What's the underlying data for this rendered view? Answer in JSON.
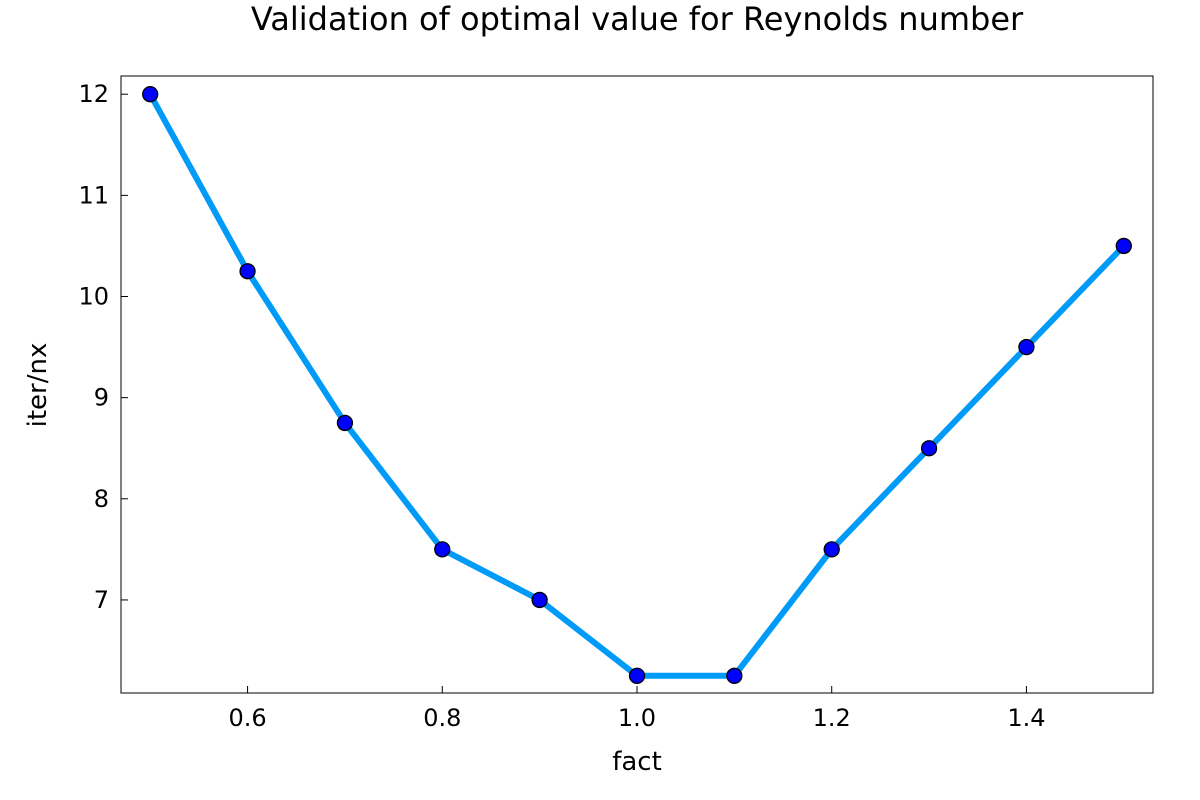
{
  "chart_data": {
    "type": "line",
    "title": "Validation of optimal value for Reynolds number",
    "xlabel": "fact",
    "ylabel": "iter/nx",
    "x": [
      0.5,
      0.6,
      0.7,
      0.8,
      0.9,
      1.0,
      1.1,
      1.2,
      1.3,
      1.4,
      1.5
    ],
    "series": [
      {
        "values": [
          12.0,
          10.25,
          8.75,
          7.5,
          7.0,
          6.25,
          6.25,
          7.5,
          8.5,
          9.5,
          10.5
        ]
      }
    ],
    "xlim": [
      0.47,
      1.53
    ],
    "ylim": [
      6.08,
      12.18
    ],
    "xticks": [
      {
        "value": 0.6,
        "label": "0.6"
      },
      {
        "value": 0.8,
        "label": "0.8"
      },
      {
        "value": 1.0,
        "label": "1.0"
      },
      {
        "value": 1.2,
        "label": "1.2"
      },
      {
        "value": 1.4,
        "label": "1.4"
      }
    ],
    "yticks": [
      {
        "value": 7,
        "label": "7"
      },
      {
        "value": 8,
        "label": "8"
      },
      {
        "value": 9,
        "label": "9"
      },
      {
        "value": 10,
        "label": "10"
      },
      {
        "value": 11,
        "label": "11"
      },
      {
        "value": 12,
        "label": "12"
      }
    ],
    "grid": false,
    "legend": "none",
    "colors": {
      "line": "#009af9",
      "marker_fill": "#0000ff",
      "marker_stroke": "#000000",
      "frame": "#000000"
    }
  }
}
